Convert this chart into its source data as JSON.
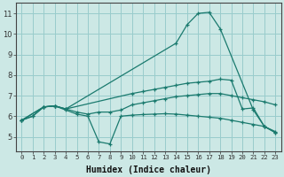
{
  "bg_color": "#cce8e5",
  "grid_color": "#99cccc",
  "line_color": "#1a7a6e",
  "xlabel": "Humidex (Indice chaleur)",
  "xlim": [
    -0.5,
    23.5
  ],
  "ylim": [
    4.3,
    11.5
  ],
  "xticks": [
    0,
    1,
    2,
    3,
    4,
    5,
    6,
    7,
    8,
    9,
    10,
    11,
    12,
    13,
    14,
    15,
    16,
    17,
    18,
    19,
    20,
    21,
    22,
    23
  ],
  "yticks": [
    5,
    6,
    7,
    8,
    9,
    10,
    11
  ],
  "lines": [
    {
      "x": [
        0,
        2,
        3,
        4,
        14,
        15,
        16,
        17,
        18,
        21,
        22,
        23
      ],
      "y": [
        5.8,
        6.45,
        6.5,
        6.35,
        9.55,
        10.45,
        11.0,
        11.05,
        10.25,
        6.3,
        5.5,
        5.2
      ]
    },
    {
      "x": [
        0,
        2,
        3,
        4,
        10,
        11,
        12,
        13,
        14,
        15,
        16,
        17,
        18,
        19,
        20,
        21,
        22,
        23
      ],
      "y": [
        5.8,
        6.45,
        6.5,
        6.35,
        7.1,
        7.2,
        7.3,
        7.4,
        7.5,
        7.6,
        7.65,
        7.7,
        7.8,
        7.75,
        6.35,
        6.4,
        5.5,
        5.2
      ]
    },
    {
      "x": [
        0,
        1,
        2,
        3,
        4,
        5,
        6,
        7,
        8,
        9,
        10,
        11,
        12,
        13,
        14,
        15,
        16,
        17,
        18,
        19,
        20,
        21,
        22,
        23
      ],
      "y": [
        5.8,
        6.0,
        6.45,
        6.5,
        6.3,
        6.1,
        6.0,
        4.75,
        4.65,
        6.0,
        6.05,
        6.08,
        6.1,
        6.12,
        6.1,
        6.05,
        6.0,
        5.95,
        5.9,
        5.8,
        5.7,
        5.6,
        5.5,
        5.25
      ]
    },
    {
      "x": [
        0,
        1,
        2,
        3,
        4,
        5,
        6,
        7,
        8,
        9,
        10,
        11,
        12,
        13,
        14,
        15,
        16,
        17,
        18,
        19,
        20,
        21,
        22,
        23
      ],
      "y": [
        5.8,
        6.0,
        6.45,
        6.5,
        6.35,
        6.2,
        6.1,
        6.2,
        6.2,
        6.3,
        6.55,
        6.65,
        6.75,
        6.85,
        6.95,
        7.0,
        7.05,
        7.1,
        7.1,
        7.0,
        6.9,
        6.8,
        6.7,
        6.55
      ]
    }
  ]
}
